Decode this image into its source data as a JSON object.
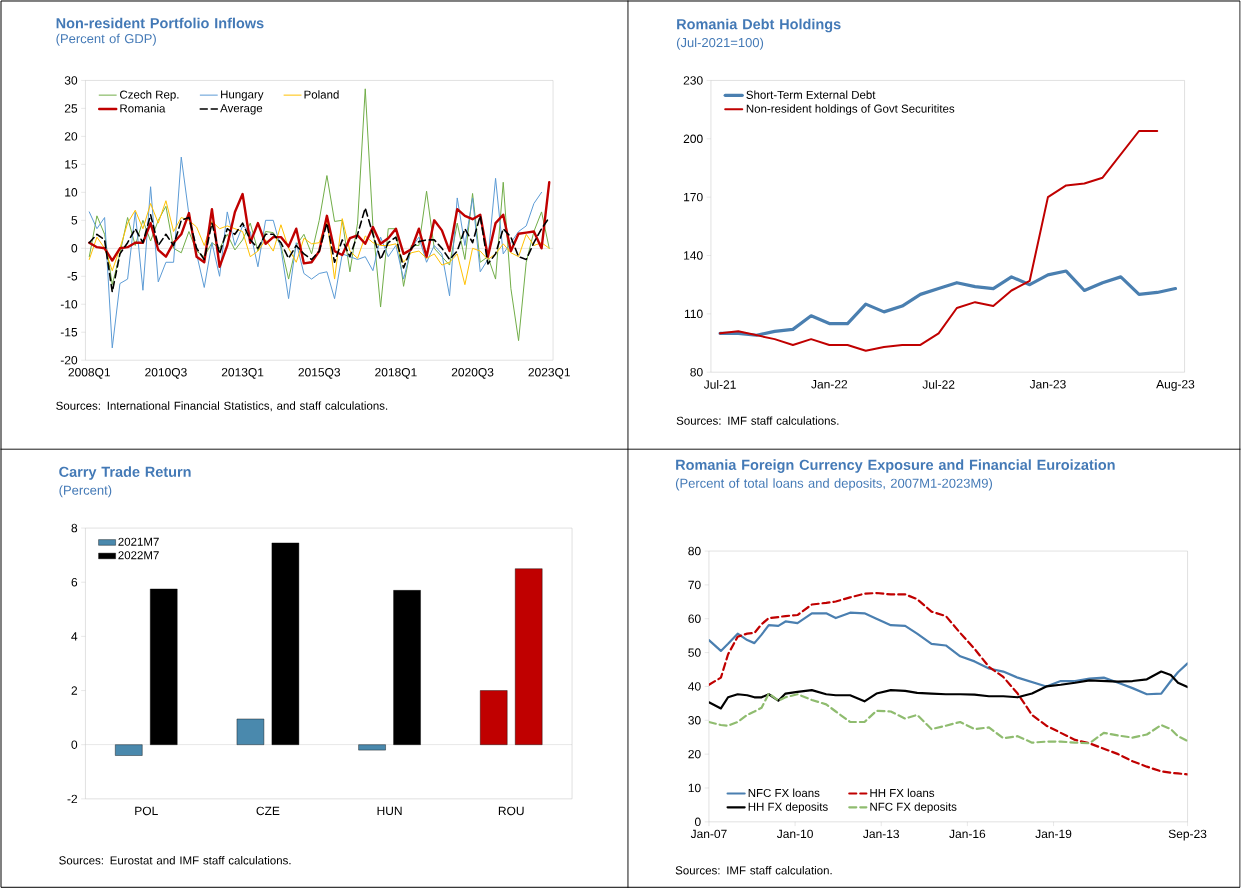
{
  "chart_data": [
    {
      "type": "line",
      "title": "Non-resident Portfolio Inflows",
      "subtitle": "(Percent of GDP)",
      "categories": [
        "2008Q1",
        null,
        null,
        null,
        null,
        null,
        null,
        null,
        null,
        null,
        "2010Q3",
        null,
        null,
        null,
        null,
        null,
        null,
        null,
        null,
        null,
        "2013Q1",
        null,
        null,
        null,
        null,
        null,
        null,
        null,
        null,
        null,
        "2015Q3",
        null,
        null,
        null,
        null,
        null,
        null,
        null,
        null,
        null,
        "2018Q1",
        null,
        null,
        null,
        null,
        null,
        null,
        null,
        null,
        null,
        "2020Q3",
        null,
        null,
        null,
        null,
        null,
        null,
        null,
        null,
        null,
        "2023Q1"
      ],
      "series": [
        {
          "name": "Czech Rep.",
          "color": "#70ad47",
          "values": [
            -1.5,
            5.8,
            2.5,
            -6.5,
            -1,
            5.5,
            0.5,
            5,
            1.3,
            5,
            7.5,
            0,
            -0.8,
            3,
            -0.5,
            -1.5,
            1,
            0,
            2.5,
            -0.3,
            1.5,
            4.5,
            -0.5,
            3,
            2.8,
            0.5,
            -5.5,
            0.5,
            2.5,
            -1,
            5,
            13,
            4.8,
            5,
            -4.2,
            4.5,
            28.5,
            4,
            -10.5,
            3.5,
            3.5,
            -6.8,
            0.5,
            0.5,
            10.2,
            0,
            -1.5,
            -3,
            4.5,
            -2,
            9.8,
            -2.5,
            -1.5,
            -5.5,
            11.8,
            -7.2,
            -16.5,
            -2.5,
            3,
            6.5,
            0
          ]
        },
        {
          "name": "Hungary",
          "color": "#5b9bd5",
          "values": [
            6.5,
            3.5,
            5.5,
            -17.8,
            -6.3,
            -5.5,
            6.5,
            -7.5,
            11,
            -6,
            -2.5,
            -2.5,
            16.3,
            6,
            -1,
            -7,
            1,
            -5,
            6.5,
            0.5,
            4,
            3,
            -3.3,
            5,
            5,
            0,
            -9,
            1,
            -4.5,
            -5.5,
            -4.5,
            -4.2,
            -9,
            -1,
            -1.5,
            -2,
            -1.5,
            -4,
            2,
            -1.5,
            0.5,
            -5.5,
            0,
            2,
            -2.5,
            0.5,
            -1,
            -8.5,
            9,
            0.5,
            9,
            -4.2,
            -2,
            12.5,
            -1,
            1,
            3,
            4,
            8,
            10,
            null
          ]
        },
        {
          "name": "Poland",
          "color": "#ffc000",
          "values": [
            -2,
            2,
            0,
            -4,
            0,
            4.5,
            6.8,
            3.5,
            8,
            4.5,
            8.5,
            3,
            5.5,
            5,
            3.8,
            0.5,
            4.8,
            3.5,
            4,
            3.5,
            3,
            -1.5,
            -0.5,
            1.5,
            -0.5,
            4.2,
            0,
            -2.5,
            1.8,
            0.8,
            1,
            5,
            -5.5,
            5.3,
            -0.5,
            -1.8,
            2.2,
            1,
            0.5,
            0.5,
            0.8,
            -2.5,
            -0.8,
            -0.5,
            -1.8,
            -1,
            -3,
            -2.5,
            -1,
            -6.5,
            0,
            -0.5,
            -2,
            -1,
            0.8,
            -0.8,
            -1.5,
            2.5,
            0.5,
            1,
            0
          ]
        },
        {
          "name": "Romania",
          "color": "#c00000",
          "values": [
            1,
            0.2,
            0,
            -2.2,
            0,
            0.2,
            1,
            1,
            4.5,
            -0.3,
            -1.5,
            1,
            2.5,
            6.3,
            -1.5,
            -2.5,
            7,
            -3.3,
            0.5,
            6.5,
            9.7,
            1,
            4.5,
            0.8,
            2,
            2,
            0.3,
            3.5,
            -2.7,
            -2.5,
            -0.5,
            5.8,
            -0.5,
            -1.2,
            1.8,
            2.3,
            0.8,
            3.8,
            0.8,
            1.8,
            3.5,
            -1,
            -0.2,
            3.5,
            -1.5,
            5,
            3.2,
            -0.5,
            7,
            5.8,
            5.2,
            6,
            -1.5,
            4.5,
            6,
            -0.5,
            2.6,
            2.8,
            3,
            0,
            11.8
          ]
        },
        {
          "name": "Average",
          "color": "#000000",
          "line_style": "dashed",
          "values": [
            1,
            2.5,
            1.5,
            -7.8,
            -1,
            1,
            3.5,
            1,
            6,
            0.5,
            2.5,
            0.5,
            5,
            5.5,
            0,
            -2,
            4.5,
            -1,
            3.5,
            2.5,
            4.5,
            1.5,
            0,
            2.5,
            2.5,
            1,
            -1.8,
            0.5,
            -1,
            -2,
            -0.5,
            4.5,
            -2.5,
            1.5,
            -1.5,
            2.5,
            7.2,
            2.5,
            -2,
            1,
            2,
            -3.5,
            0,
            1.2,
            1.5,
            1.5,
            0,
            -2,
            -0.5,
            3.5,
            1,
            5.8,
            -2.8,
            -1,
            3.5,
            2,
            -1.5,
            -2,
            1,
            3.5,
            5.5
          ]
        }
      ],
      "ylim": [
        -20,
        30
      ],
      "yticks": [
        -20,
        -15,
        -10,
        -5,
        0,
        5,
        10,
        15,
        20,
        25,
        30
      ],
      "legend": "top left",
      "annotations": [
        "Sources: International Financial Statistics, and staff calculations."
      ]
    },
    {
      "type": "line",
      "title": "Romania Debt Holdings",
      "subtitle": "(Jul-2021=100)",
      "categories": [
        "Jul-21",
        null,
        null,
        null,
        null,
        null,
        "Jan-22",
        null,
        null,
        null,
        null,
        null,
        "Jul-22",
        null,
        null,
        null,
        null,
        null,
        "Jan-23",
        null,
        null,
        null,
        null,
        null,
        null,
        "Aug-23"
      ],
      "series": [
        {
          "name": "Short-Term External Debt",
          "color": "#4a7fb0",
          "values": [
            100,
            100,
            99,
            101,
            102,
            109,
            105,
            105,
            115,
            111,
            114,
            120,
            123,
            126,
            124,
            123,
            129,
            125,
            130,
            132,
            122,
            126,
            129,
            120,
            121,
            123
          ]
        },
        {
          "name": "Non-resident holdings of Govt Securitites",
          "color": "#c00000",
          "values": [
            100,
            101,
            99,
            97,
            94,
            97,
            94,
            94,
            91,
            93,
            94,
            94,
            100,
            113,
            116,
            114,
            122,
            127,
            170,
            176,
            177,
            180,
            192,
            204,
            204,
            null
          ]
        }
      ],
      "ylim": [
        80,
        230
      ],
      "yticks": [
        80,
        110,
        140,
        170,
        200,
        230
      ],
      "legend": "top left",
      "annotations": [
        "Sources: IMF staff calculations."
      ]
    },
    {
      "type": "bar",
      "title": "Carry Trade Return",
      "subtitle": "(Percent)",
      "categories": [
        "POL",
        "CZE",
        "HUN",
        "ROU"
      ],
      "series": [
        {
          "name": "2021M7",
          "color": "#4a89ad",
          "colors": [
            "#4a89ad",
            "#4a89ad",
            "#4a89ad",
            "#c00000"
          ],
          "values": [
            -0.4,
            0.95,
            -0.2,
            2.0
          ]
        },
        {
          "name": "2022M7",
          "color": "#000000",
          "colors": [
            "#000000",
            "#000000",
            "#000000",
            "#c00000"
          ],
          "values": [
            5.75,
            7.45,
            5.7,
            6.5
          ]
        }
      ],
      "ylim": [
        -2,
        8
      ],
      "yticks": [
        -2,
        0,
        2,
        4,
        6,
        8
      ],
      "legend": "top left",
      "annotations": [
        "Sources: Eurostat and IMF staff calculations."
      ]
    },
    {
      "type": "line",
      "title": "Romania Foreign Currency Exposure and Financial Euroization",
      "subtitle": "(Percent of total loans and deposits, 2007M1-2023M9)",
      "x": [
        "2007-01",
        "2007-06",
        "2007-09",
        "2008-01",
        "2008-05",
        "2008-08",
        "2008-11",
        "2009-02",
        "2009-06",
        "2009-09",
        "2010-02",
        "2010-08",
        "2011-02",
        "2011-06",
        "2011-12",
        "2012-06",
        "2012-11",
        "2013-05",
        "2013-11",
        "2014-04",
        "2014-10",
        "2015-04",
        "2015-10",
        "2016-04",
        "2016-10",
        "2017-04",
        "2017-10",
        "2018-04",
        "2018-10",
        "2019-04",
        "2019-10",
        "2020-04",
        "2020-10",
        "2021-04",
        "2021-10",
        "2022-04",
        "2022-10",
        "2023-02",
        "2023-05",
        "2023-09"
      ],
      "series": [
        {
          "name": "NFC FX loans",
          "color": "#4a7fb0",
          "values": [
            53.7,
            50.5,
            52.6,
            55.6,
            53.7,
            52.8,
            55.3,
            58.1,
            57.9,
            59.2,
            58.7,
            61.6,
            61.6,
            60.2,
            61.8,
            61.6,
            60,
            58.1,
            57.9,
            55.6,
            52.6,
            52.1,
            48.9,
            47.4,
            45.3,
            44.4,
            42.6,
            41.3,
            40,
            41.6,
            41.6,
            42.3,
            42.6,
            41.1,
            39.5,
            37.7,
            37.9,
            41.6,
            44.2,
            46.8
          ]
        },
        {
          "name": "HH FX loans",
          "color": "#c00000",
          "line_style": "dashed",
          "values": [
            40.5,
            42.6,
            49.5,
            54.7,
            55.6,
            55.8,
            58.4,
            60.2,
            60.5,
            60.8,
            61.1,
            64.2,
            64.7,
            65.1,
            66.3,
            67.4,
            67.6,
            67.2,
            67.2,
            65.8,
            62.1,
            60.8,
            55.8,
            51.1,
            45.8,
            42.8,
            37.9,
            31.6,
            28.4,
            26.3,
            24.2,
            23.2,
            21.6,
            20,
            17.9,
            16.3,
            14.9,
            14.5,
            14.3,
            14
          ]
        },
        {
          "name": "HH FX deposits",
          "color": "#000000",
          "values": [
            35.3,
            33.5,
            36.8,
            37.7,
            37.4,
            36.8,
            36.8,
            37.7,
            35.8,
            37.9,
            38.4,
            38.9,
            37.7,
            37.4,
            37.4,
            35.6,
            37.9,
            38.9,
            38.7,
            38.1,
            37.9,
            37.7,
            37.7,
            37.6,
            37.1,
            37.1,
            36.8,
            37.9,
            40,
            40.5,
            41.1,
            41.8,
            41.6,
            41.4,
            41.6,
            42.1,
            44.4,
            43.4,
            41.1,
            39.8
          ]
        },
        {
          "name": "NFC FX deposits",
          "color": "#8fbc6f",
          "line_style": "dashed",
          "values": [
            29.5,
            28.6,
            28.4,
            29.5,
            31.6,
            32.6,
            33.7,
            37.9,
            35.8,
            36.8,
            37.7,
            36,
            34.7,
            32.6,
            29.5,
            29.5,
            32.8,
            32.6,
            30.5,
            31.6,
            27.4,
            28.4,
            29.5,
            27.4,
            27.9,
            24.7,
            25.3,
            23.4,
            23.7,
            23.7,
            23.4,
            23.2,
            26.3,
            25.5,
            24.9,
            25.8,
            28.6,
            27.4,
            25.3,
            23.9
          ]
        }
      ],
      "xlim": [
        "2007-01",
        "2023-09"
      ],
      "xticks": [
        {
          "value": "2007-01",
          "label": "Jan-07"
        },
        {
          "value": "2010-01",
          "label": "Jan-10"
        },
        {
          "value": "2013-01",
          "label": "Jan-13"
        },
        {
          "value": "2016-01",
          "label": "Jan-16"
        },
        {
          "value": "2019-01",
          "label": "Jan-19"
        },
        {
          "value": "2023-09",
          "label": "Sep-23"
        }
      ],
      "ylim": [
        0,
        80
      ],
      "yticks": [
        0,
        10,
        20,
        30,
        40,
        50,
        60,
        70,
        80
      ],
      "legend": "bottom left",
      "annotations": [
        "Sources: IMF staff calculation."
      ]
    }
  ]
}
